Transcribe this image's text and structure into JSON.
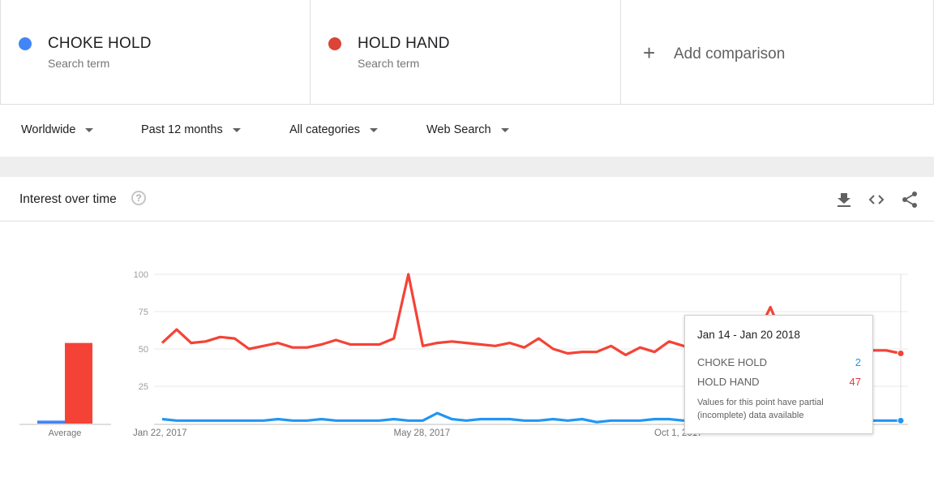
{
  "terms": [
    {
      "name": "CHOKE HOLD",
      "sub": "Search term",
      "color": "#4285f4"
    },
    {
      "name": "HOLD HAND",
      "sub": "Search term",
      "color": "#db4437"
    }
  ],
  "add_comparison": {
    "plus": "+",
    "label": "Add comparison"
  },
  "filters": {
    "region": "Worldwide",
    "time": "Past 12 months",
    "category": "All categories",
    "search_type": "Web Search"
  },
  "panel": {
    "title": "Interest over time",
    "help": "?"
  },
  "icons": {
    "download": "download-icon",
    "embed": "embed-code-icon",
    "share": "share-icon",
    "help": "help-icon"
  },
  "colors": {
    "series_blue": "#4285f4",
    "series_red": "#f44336",
    "tooltip_blue": "#1a9ae0",
    "tooltip_red": "#e53935"
  },
  "tooltip": {
    "date": "Jan 14 - Jan 20 2018",
    "rows": [
      {
        "name": "CHOKE HOLD",
        "value": "2"
      },
      {
        "name": "HOLD HAND",
        "value": "47"
      }
    ],
    "note": "Values for this point have partial (incomplete) data available"
  },
  "chart_data": {
    "type": "line",
    "ylim": [
      0,
      100
    ],
    "yticks": [
      "100",
      "75",
      "50",
      "25"
    ],
    "xtick_labels": [
      "Jan 22, 2017",
      "May 28, 2017",
      "Oct 1, 2017"
    ],
    "x": [
      "Jan 22, 2017",
      "Jan 29, 2017",
      "Feb 5, 2017",
      "Feb 12, 2017",
      "Feb 19, 2017",
      "Feb 26, 2017",
      "Mar 5, 2017",
      "Mar 12, 2017",
      "Mar 19, 2017",
      "Mar 26, 2017",
      "Apr 2, 2017",
      "Apr 9, 2017",
      "Apr 16, 2017",
      "Apr 23, 2017",
      "Apr 30, 2017",
      "May 7, 2017",
      "May 14, 2017",
      "May 21, 2017",
      "May 28, 2017",
      "Jun 4, 2017",
      "Jun 11, 2017",
      "Jun 18, 2017",
      "Jun 25, 2017",
      "Jul 2, 2017",
      "Jul 9, 2017",
      "Jul 16, 2017",
      "Jul 23, 2017",
      "Jul 30, 2017",
      "Aug 6, 2017",
      "Aug 13, 2017",
      "Aug 20, 2017",
      "Aug 27, 2017",
      "Sep 3, 2017",
      "Sep 10, 2017",
      "Sep 17, 2017",
      "Sep 24, 2017",
      "Oct 1, 2017",
      "Oct 8, 2017",
      "Oct 15, 2017",
      "Oct 22, 2017",
      "Oct 29, 2017",
      "Nov 5, 2017",
      "Nov 12, 2017",
      "Nov 19, 2017",
      "Nov 26, 2017",
      "Dec 3, 2017",
      "Dec 10, 2017",
      "Dec 17, 2017",
      "Dec 24, 2017",
      "Dec 31, 2017",
      "Jan 7, 2018",
      "Jan 14, 2018"
    ],
    "series": [
      {
        "name": "CHOKE HOLD",
        "color": "#2196f3",
        "values": [
          3,
          2,
          2,
          2,
          2,
          2,
          2,
          2,
          3,
          2,
          2,
          3,
          2,
          2,
          2,
          2,
          3,
          2,
          2,
          7,
          3,
          2,
          3,
          3,
          3,
          2,
          2,
          3,
          2,
          3,
          1,
          2,
          2,
          2,
          3,
          3,
          2,
          2,
          3,
          2,
          2,
          2,
          2,
          2,
          2,
          2,
          2,
          2,
          2,
          2,
          2,
          2
        ]
      },
      {
        "name": "HOLD HAND",
        "color": "#f44336",
        "values": [
          54,
          63,
          54,
          55,
          58,
          57,
          50,
          52,
          54,
          51,
          51,
          53,
          56,
          53,
          53,
          53,
          57,
          100,
          52,
          54,
          55,
          54,
          53,
          52,
          54,
          51,
          57,
          50,
          47,
          48,
          48,
          52,
          46,
          51,
          48,
          55,
          52,
          48,
          50,
          51,
          52,
          58,
          78,
          55,
          47,
          53,
          50,
          48,
          49,
          49,
          49,
          47
        ]
      }
    ],
    "averages": [
      {
        "name": "CHOKE HOLD",
        "value": 2
      },
      {
        "name": "HOLD HAND",
        "value": 54
      }
    ],
    "average_label": "Average",
    "grid": true,
    "highlight_index": 51
  }
}
